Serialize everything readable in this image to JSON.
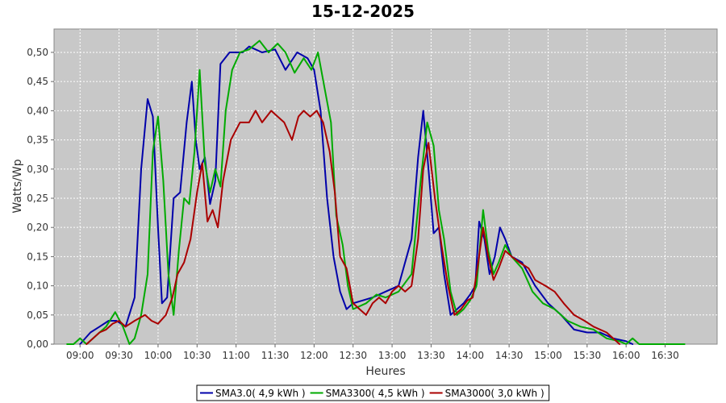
{
  "chart_data": {
    "type": "line",
    "title": "15-12-2025",
    "xlabel": "Heures",
    "ylabel": "Watts/Wp",
    "xlim": [
      "08:40",
      "17:10"
    ],
    "ylim": [
      0,
      0.54
    ],
    "x_ticks": [
      "09:00",
      "09:30",
      "10:00",
      "10:30",
      "11:00",
      "11:30",
      "12:00",
      "12:30",
      "13:00",
      "13:30",
      "14:00",
      "14:30",
      "15:00",
      "15:30",
      "16:00",
      "16:30"
    ],
    "y_ticks": [
      "0,00",
      "0,05",
      "0,10",
      "0,15",
      "0,20",
      "0,25",
      "0,30",
      "0,35",
      "0,40",
      "0,45",
      "0,50"
    ],
    "y_tick_values": [
      0,
      0.05,
      0.1,
      0.15,
      0.2,
      0.25,
      0.3,
      0.35,
      0.4,
      0.45,
      0.5
    ],
    "grid": true,
    "legend_position": "bottom-center",
    "series": [
      {
        "name": "SMA3.0( 4,9 kWh )",
        "color": "#0000aa",
        "points": [
          [
            "09:00",
            0.0
          ],
          [
            "09:08",
            0.02
          ],
          [
            "09:15",
            0.03
          ],
          [
            "09:22",
            0.04
          ],
          [
            "09:28",
            0.04
          ],
          [
            "09:35",
            0.03
          ],
          [
            "09:42",
            0.08
          ],
          [
            "09:47",
            0.3
          ],
          [
            "09:52",
            0.42
          ],
          [
            "09:56",
            0.39
          ],
          [
            "10:00",
            0.2
          ],
          [
            "10:03",
            0.07
          ],
          [
            "10:07",
            0.08
          ],
          [
            "10:12",
            0.25
          ],
          [
            "10:17",
            0.26
          ],
          [
            "10:22",
            0.38
          ],
          [
            "10:26",
            0.45
          ],
          [
            "10:29",
            0.35
          ],
          [
            "10:32",
            0.3
          ],
          [
            "10:36",
            0.32
          ],
          [
            "10:40",
            0.24
          ],
          [
            "10:44",
            0.28
          ],
          [
            "10:48",
            0.48
          ],
          [
            "10:55",
            0.5
          ],
          [
            "11:05",
            0.5
          ],
          [
            "11:10",
            0.51
          ],
          [
            "11:20",
            0.5
          ],
          [
            "11:30",
            0.505
          ],
          [
            "11:38",
            0.47
          ],
          [
            "11:47",
            0.5
          ],
          [
            "11:55",
            0.49
          ],
          [
            "12:00",
            0.47
          ],
          [
            "12:05",
            0.4
          ],
          [
            "12:10",
            0.25
          ],
          [
            "12:15",
            0.15
          ],
          [
            "12:20",
            0.09
          ],
          [
            "12:25",
            0.06
          ],
          [
            "12:30",
            0.07
          ],
          [
            "12:45",
            0.08
          ],
          [
            "12:55",
            0.09
          ],
          [
            "13:05",
            0.1
          ],
          [
            "13:15",
            0.18
          ],
          [
            "13:20",
            0.32
          ],
          [
            "13:24",
            0.4
          ],
          [
            "13:28",
            0.3
          ],
          [
            "13:32",
            0.19
          ],
          [
            "13:36",
            0.2
          ],
          [
            "13:40",
            0.12
          ],
          [
            "13:45",
            0.05
          ],
          [
            "13:50",
            0.06
          ],
          [
            "13:55",
            0.07
          ],
          [
            "14:00",
            0.085
          ],
          [
            "14:04",
            0.1
          ],
          [
            "14:07",
            0.21
          ],
          [
            "14:11",
            0.18
          ],
          [
            "14:15",
            0.12
          ],
          [
            "14:19",
            0.15
          ],
          [
            "14:23",
            0.2
          ],
          [
            "14:27",
            0.18
          ],
          [
            "14:32",
            0.15
          ],
          [
            "14:40",
            0.14
          ],
          [
            "14:50",
            0.1
          ],
          [
            "15:00",
            0.07
          ],
          [
            "15:10",
            0.05
          ],
          [
            "15:20",
            0.025
          ],
          [
            "15:30",
            0.02
          ],
          [
            "15:40",
            0.02
          ],
          [
            "15:50",
            0.01
          ],
          [
            "16:00",
            0.005
          ],
          [
            "16:05",
            0.0
          ]
        ]
      },
      {
        "name": "SMA3300( 4,5 kWh )",
        "color": "#00aa00",
        "points": [
          [
            "08:50",
            0.0
          ],
          [
            "08:55",
            0.0
          ],
          [
            "09:00",
            0.01
          ],
          [
            "09:05",
            0.0
          ],
          [
            "09:10",
            0.01
          ],
          [
            "09:15",
            0.02
          ],
          [
            "09:20",
            0.03
          ],
          [
            "09:27",
            0.055
          ],
          [
            "09:33",
            0.03
          ],
          [
            "09:38",
            0.0
          ],
          [
            "09:42",
            0.01
          ],
          [
            "09:47",
            0.05
          ],
          [
            "09:52",
            0.12
          ],
          [
            "09:56",
            0.33
          ],
          [
            "10:00",
            0.39
          ],
          [
            "10:04",
            0.28
          ],
          [
            "10:08",
            0.12
          ],
          [
            "10:12",
            0.05
          ],
          [
            "10:16",
            0.16
          ],
          [
            "10:20",
            0.25
          ],
          [
            "10:24",
            0.24
          ],
          [
            "10:28",
            0.33
          ],
          [
            "10:32",
            0.47
          ],
          [
            "10:36",
            0.31
          ],
          [
            "10:40",
            0.26
          ],
          [
            "10:44",
            0.3
          ],
          [
            "10:48",
            0.27
          ],
          [
            "10:52",
            0.4
          ],
          [
            "10:57",
            0.47
          ],
          [
            "11:03",
            0.5
          ],
          [
            "11:10",
            0.505
          ],
          [
            "11:18",
            0.52
          ],
          [
            "11:25",
            0.5
          ],
          [
            "11:32",
            0.515
          ],
          [
            "11:38",
            0.5
          ],
          [
            "11:45",
            0.465
          ],
          [
            "11:52",
            0.49
          ],
          [
            "11:58",
            0.47
          ],
          [
            "12:03",
            0.5
          ],
          [
            "12:08",
            0.44
          ],
          [
            "12:13",
            0.38
          ],
          [
            "12:17",
            0.22
          ],
          [
            "12:22",
            0.17
          ],
          [
            "12:26",
            0.1
          ],
          [
            "12:30",
            0.06
          ],
          [
            "12:40",
            0.07
          ],
          [
            "12:48",
            0.085
          ],
          [
            "12:55",
            0.08
          ],
          [
            "13:05",
            0.09
          ],
          [
            "13:15",
            0.12
          ],
          [
            "13:22",
            0.28
          ],
          [
            "13:27",
            0.38
          ],
          [
            "13:32",
            0.34
          ],
          [
            "13:36",
            0.23
          ],
          [
            "13:40",
            0.18
          ],
          [
            "13:45",
            0.09
          ],
          [
            "13:50",
            0.05
          ],
          [
            "13:55",
            0.06
          ],
          [
            "14:00",
            0.075
          ],
          [
            "14:05",
            0.1
          ],
          [
            "14:10",
            0.23
          ],
          [
            "14:14",
            0.16
          ],
          [
            "14:18",
            0.12
          ],
          [
            "14:22",
            0.14
          ],
          [
            "14:27",
            0.17
          ],
          [
            "14:32",
            0.15
          ],
          [
            "14:40",
            0.13
          ],
          [
            "14:48",
            0.09
          ],
          [
            "14:56",
            0.07
          ],
          [
            "15:05",
            0.06
          ],
          [
            "15:15",
            0.04
          ],
          [
            "15:25",
            0.03
          ],
          [
            "15:35",
            0.025
          ],
          [
            "15:45",
            0.01
          ],
          [
            "15:55",
            0.005
          ],
          [
            "16:00",
            0.0
          ],
          [
            "16:05",
            0.01
          ],
          [
            "16:10",
            0.0
          ],
          [
            "16:20",
            0.0
          ],
          [
            "16:40",
            0.0
          ],
          [
            "16:45",
            0.0
          ]
        ]
      },
      {
        "name": "SMA3000( 3,0 kWh )",
        "color": "#aa0000",
        "points": [
          [
            "09:05",
            0.0
          ],
          [
            "09:10",
            0.01
          ],
          [
            "09:15",
            0.02
          ],
          [
            "09:20",
            0.025
          ],
          [
            "09:25",
            0.035
          ],
          [
            "09:30",
            0.04
          ],
          [
            "09:35",
            0.03
          ],
          [
            "09:42",
            0.04
          ],
          [
            "09:50",
            0.05
          ],
          [
            "09:55",
            0.04
          ],
          [
            "10:00",
            0.035
          ],
          [
            "10:06",
            0.05
          ],
          [
            "10:11",
            0.08
          ],
          [
            "10:15",
            0.12
          ],
          [
            "10:20",
            0.14
          ],
          [
            "10:25",
            0.18
          ],
          [
            "10:30",
            0.26
          ],
          [
            "10:34",
            0.31
          ],
          [
            "10:38",
            0.21
          ],
          [
            "10:42",
            0.23
          ],
          [
            "10:46",
            0.2
          ],
          [
            "10:50",
            0.28
          ],
          [
            "10:56",
            0.35
          ],
          [
            "11:03",
            0.38
          ],
          [
            "11:10",
            0.38
          ],
          [
            "11:15",
            0.4
          ],
          [
            "11:20",
            0.38
          ],
          [
            "11:27",
            0.4
          ],
          [
            "11:32",
            0.39
          ],
          [
            "11:37",
            0.38
          ],
          [
            "11:43",
            0.35
          ],
          [
            "11:48",
            0.39
          ],
          [
            "11:52",
            0.4
          ],
          [
            "11:57",
            0.39
          ],
          [
            "12:02",
            0.4
          ],
          [
            "12:07",
            0.38
          ],
          [
            "12:12",
            0.33
          ],
          [
            "12:16",
            0.26
          ],
          [
            "12:20",
            0.15
          ],
          [
            "12:25",
            0.13
          ],
          [
            "12:30",
            0.07
          ],
          [
            "12:35",
            0.06
          ],
          [
            "12:40",
            0.05
          ],
          [
            "12:45",
            0.07
          ],
          [
            "12:50",
            0.08
          ],
          [
            "12:55",
            0.07
          ],
          [
            "13:00",
            0.09
          ],
          [
            "13:05",
            0.1
          ],
          [
            "13:10",
            0.09
          ],
          [
            "13:15",
            0.1
          ],
          [
            "13:20",
            0.18
          ],
          [
            "13:24",
            0.3
          ],
          [
            "13:28",
            0.345
          ],
          [
            "13:33",
            0.25
          ],
          [
            "13:38",
            0.17
          ],
          [
            "13:43",
            0.1
          ],
          [
            "13:48",
            0.05
          ],
          [
            "13:53",
            0.06
          ],
          [
            "13:58",
            0.075
          ],
          [
            "14:02",
            0.08
          ],
          [
            "14:05",
            0.12
          ],
          [
            "14:10",
            0.2
          ],
          [
            "14:14",
            0.15
          ],
          [
            "14:18",
            0.11
          ],
          [
            "14:22",
            0.13
          ],
          [
            "14:27",
            0.16
          ],
          [
            "14:32",
            0.15
          ],
          [
            "14:38",
            0.14
          ],
          [
            "14:45",
            0.13
          ],
          [
            "14:50",
            0.11
          ],
          [
            "14:58",
            0.1
          ],
          [
            "15:05",
            0.09
          ],
          [
            "15:12",
            0.07
          ],
          [
            "15:20",
            0.05
          ],
          [
            "15:28",
            0.04
          ],
          [
            "15:35",
            0.03
          ],
          [
            "15:45",
            0.02
          ],
          [
            "15:50",
            0.01
          ],
          [
            "15:55",
            0.0
          ]
        ]
      }
    ]
  }
}
